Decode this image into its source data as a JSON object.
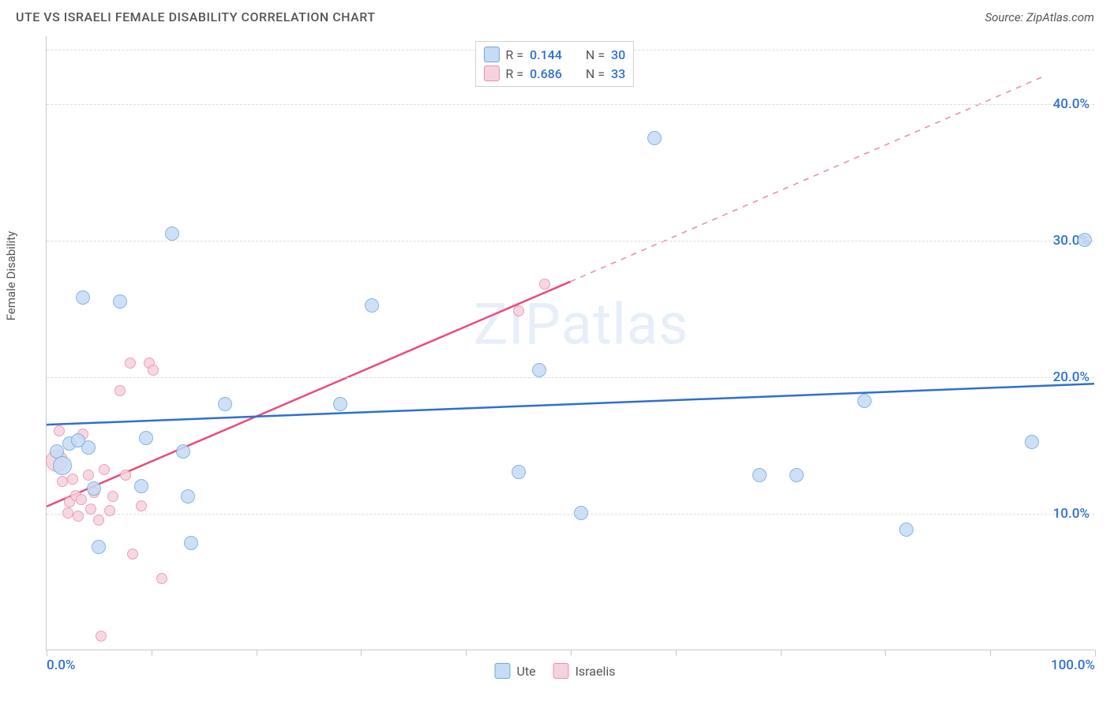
{
  "title": "UTE VS ISRAELI FEMALE DISABILITY CORRELATION CHART",
  "source": "Source: ZipAtlas.com",
  "watermark": "ZIPatlas",
  "ylabel": "Female Disability",
  "chart": {
    "type": "scatter",
    "xlim": [
      0,
      100
    ],
    "ylim": [
      0,
      45
    ],
    "background_color": "#ffffff",
    "grid_color": "#dcdcdc",
    "axis_color": "#c9c9c9",
    "x_ticks": [
      0,
      10,
      20,
      30,
      40,
      50,
      60,
      70,
      80,
      90,
      100
    ],
    "x_tick_labels": {
      "0": "0.0%",
      "100": "100.0%"
    },
    "x_label_color": "#2f6fd0",
    "y_gridlines": [
      10,
      20,
      30,
      40,
      44
    ],
    "y_tick_labels": {
      "10": "10.0%",
      "20": "20.0%",
      "30": "30.0%",
      "40": "40.0%"
    },
    "y_label_color": "#2f6fd0",
    "point_radius_small": 7,
    "point_radius_large": 11,
    "series": [
      {
        "name": "Ute",
        "fill": "#c6dbf4",
        "stroke": "#6faadf",
        "stroke_width": 1.4,
        "r_value": "0.144",
        "n_value": "30",
        "trend": {
          "x1": 0,
          "y1": 16.5,
          "x2": 100,
          "y2": 19.5,
          "color": "#2f6fd0",
          "width": 2.5,
          "dash": null
        },
        "points": [
          {
            "x": 1,
            "y": 14.5,
            "r": 9
          },
          {
            "x": 4,
            "y": 14.8,
            "r": 9
          },
          {
            "x": 3.5,
            "y": 25.8,
            "r": 9
          },
          {
            "x": 7,
            "y": 25.5,
            "r": 9
          },
          {
            "x": 12,
            "y": 30.5,
            "r": 9
          },
          {
            "x": 1.5,
            "y": 13.5,
            "r": 12
          },
          {
            "x": 2.2,
            "y": 15.1,
            "r": 9
          },
          {
            "x": 3,
            "y": 15.3,
            "r": 9
          },
          {
            "x": 4.5,
            "y": 11.8,
            "r": 9
          },
          {
            "x": 5,
            "y": 7.5,
            "r": 9
          },
          {
            "x": 9,
            "y": 12,
            "r": 9
          },
          {
            "x": 9.5,
            "y": 15.5,
            "r": 9
          },
          {
            "x": 13,
            "y": 14.5,
            "r": 9
          },
          {
            "x": 13.5,
            "y": 11.2,
            "r": 9
          },
          {
            "x": 13.8,
            "y": 7.8,
            "r": 9
          },
          {
            "x": 17,
            "y": 18,
            "r": 9
          },
          {
            "x": 28,
            "y": 18,
            "r": 9
          },
          {
            "x": 31,
            "y": 25.2,
            "r": 9
          },
          {
            "x": 45,
            "y": 13,
            "r": 9
          },
          {
            "x": 47,
            "y": 20.5,
            "r": 9
          },
          {
            "x": 51,
            "y": 10,
            "r": 9
          },
          {
            "x": 58,
            "y": 37.5,
            "r": 9
          },
          {
            "x": 68,
            "y": 12.8,
            "r": 9
          },
          {
            "x": 71.5,
            "y": 12.8,
            "r": 9
          },
          {
            "x": 78,
            "y": 18.2,
            "r": 9
          },
          {
            "x": 82,
            "y": 8.8,
            "r": 9
          },
          {
            "x": 94,
            "y": 15.2,
            "r": 9
          },
          {
            "x": 99,
            "y": 30,
            "r": 9
          }
        ]
      },
      {
        "name": "Israelis",
        "fill": "#f6d2dc",
        "stroke": "#e98fb0",
        "stroke_width": 1.4,
        "r_value": "0.686",
        "n_value": "33",
        "trend_solid": {
          "x1": 0,
          "y1": 10.5,
          "x2": 50,
          "y2": 27,
          "color": "#e94b7e",
          "width": 2.5
        },
        "trend_dash": {
          "x1": 50,
          "y1": 27,
          "x2": 95,
          "y2": 42,
          "color": "#e98fb0",
          "width": 1.6
        },
        "points": [
          {
            "x": 1,
            "y": 13.8,
            "r": 14
          },
          {
            "x": 1.2,
            "y": 16,
            "r": 7
          },
          {
            "x": 1.5,
            "y": 12.3,
            "r": 7
          },
          {
            "x": 2,
            "y": 10,
            "r": 7
          },
          {
            "x": 2.2,
            "y": 10.8,
            "r": 7
          },
          {
            "x": 2.5,
            "y": 12.5,
            "r": 7
          },
          {
            "x": 2.8,
            "y": 11.3,
            "r": 7
          },
          {
            "x": 3,
            "y": 9.8,
            "r": 7
          },
          {
            "x": 3.3,
            "y": 11,
            "r": 7
          },
          {
            "x": 3.5,
            "y": 15.8,
            "r": 7
          },
          {
            "x": 4,
            "y": 12.8,
            "r": 7
          },
          {
            "x": 4.2,
            "y": 10.3,
            "r": 7
          },
          {
            "x": 4.5,
            "y": 11.5,
            "r": 7
          },
          {
            "x": 5,
            "y": 9.5,
            "r": 7
          },
          {
            "x": 5.2,
            "y": 1,
            "r": 7
          },
          {
            "x": 5.5,
            "y": 13.2,
            "r": 7
          },
          {
            "x": 6,
            "y": 10.2,
            "r": 7
          },
          {
            "x": 6.3,
            "y": 11.2,
            "r": 7
          },
          {
            "x": 7,
            "y": 19,
            "r": 7
          },
          {
            "x": 7.5,
            "y": 12.8,
            "r": 7
          },
          {
            "x": 8,
            "y": 21,
            "r": 7
          },
          {
            "x": 8.2,
            "y": 7,
            "r": 7
          },
          {
            "x": 9,
            "y": 10.5,
            "r": 7
          },
          {
            "x": 9.8,
            "y": 21,
            "r": 7
          },
          {
            "x": 10.2,
            "y": 20.5,
            "r": 7
          },
          {
            "x": 11,
            "y": 5.2,
            "r": 7
          },
          {
            "x": 45,
            "y": 24.8,
            "r": 7
          },
          {
            "x": 47.5,
            "y": 26.8,
            "r": 7
          }
        ]
      }
    ],
    "legend_top": {
      "r_label": "R",
      "n_label": "N",
      "eq": "="
    },
    "legend_bottom": [
      {
        "label": "Ute",
        "fill": "#c6dbf4",
        "stroke": "#6faadf"
      },
      {
        "label": "Israelis",
        "fill": "#f6d2dc",
        "stroke": "#e98fb0"
      }
    ]
  }
}
